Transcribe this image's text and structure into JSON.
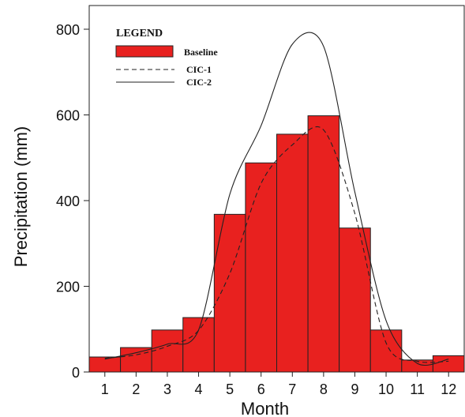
{
  "chart_data": {
    "type": "bar",
    "title": "",
    "xlabel": "Month",
    "ylabel": "Precipitation (mm)",
    "ylim": [
      0,
      800
    ],
    "yticks": [
      0,
      200,
      400,
      600,
      800
    ],
    "categories": [
      "1",
      "2",
      "3",
      "4",
      "5",
      "6",
      "7",
      "8",
      "9",
      "10",
      "11",
      "12"
    ],
    "series": [
      {
        "name": "Baseline",
        "kind": "bar",
        "color": "#e8211f",
        "values": [
          35,
          57,
          98,
          127,
          368,
          488,
          555,
          598,
          336,
          98,
          28,
          38
        ]
      },
      {
        "name": "CIC-1",
        "kind": "line",
        "style": "dashed",
        "color": "#222222",
        "values": [
          32,
          40,
          60,
          97,
          230,
          440,
          530,
          565,
          370,
          68,
          25,
          25
        ]
      },
      {
        "name": "CIC-2",
        "kind": "line",
        "style": "solid",
        "color": "#222222",
        "values": [
          30,
          45,
          65,
          98,
          415,
          575,
          765,
          760,
          420,
          120,
          20,
          30
        ]
      }
    ],
    "legend": {
      "title": "LEGEND",
      "position": "top-left"
    },
    "grid": false
  }
}
